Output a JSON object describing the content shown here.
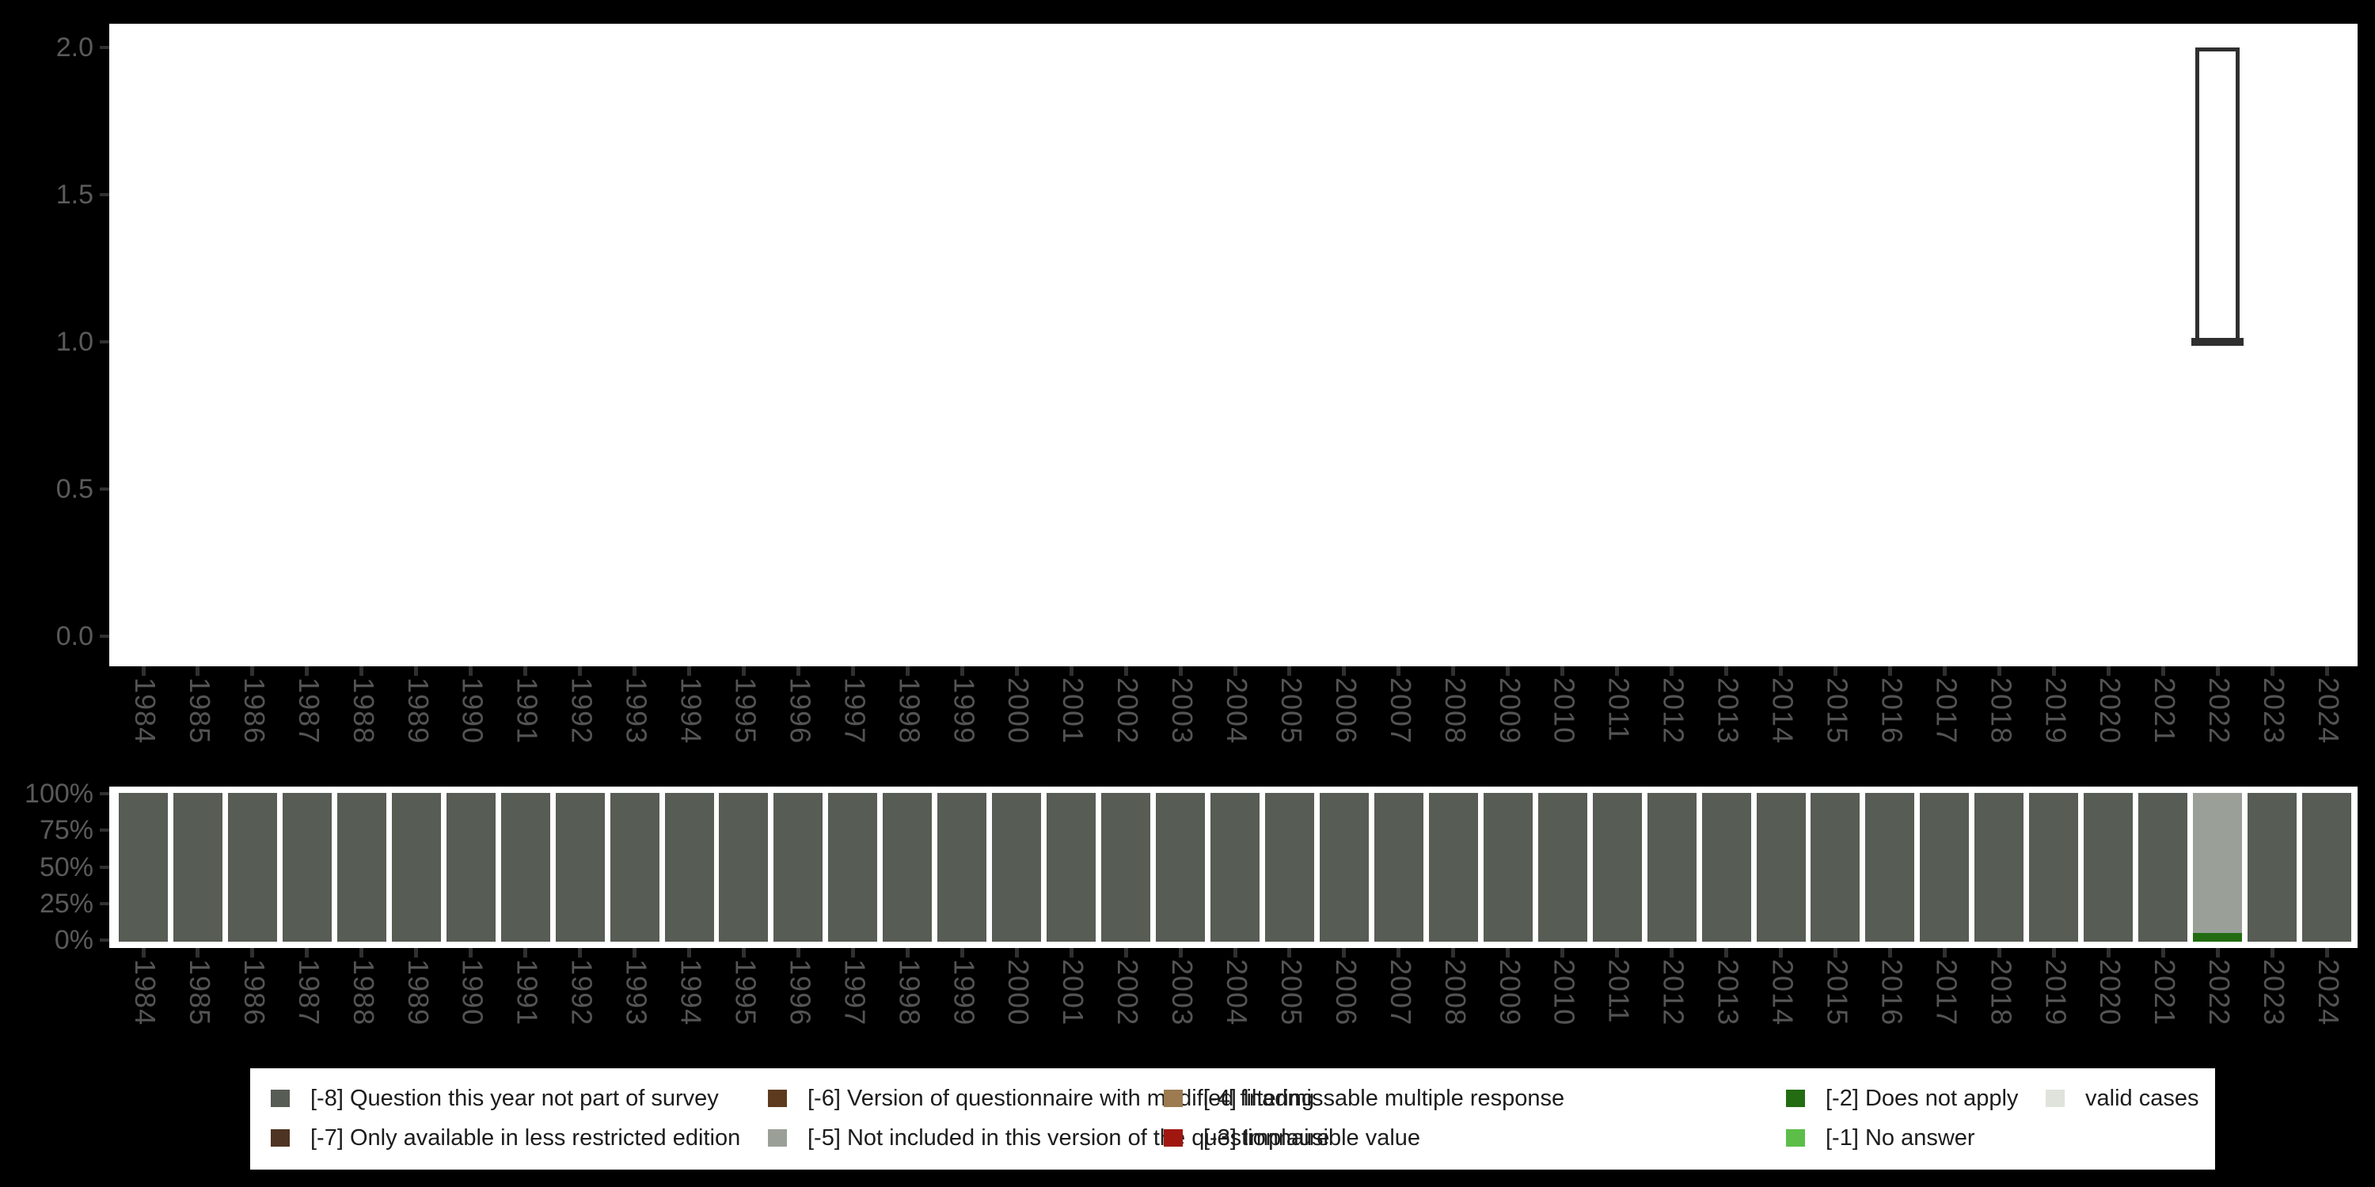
{
  "colors": {
    "background": "#000000",
    "panel": "#ffffff",
    "axis_text": "#5a5a5a",
    "tick_mark": "#303030",
    "box_border": "#2f2f2f",
    "legend_text": "#1c1c1c",
    "legend_background": "#ffffff"
  },
  "legend": {
    "items": [
      {
        "label": "[-8] Question this year not part of survey",
        "color": "#575c54",
        "row": 1,
        "col": 1
      },
      {
        "label": "[-7] Only available in less restricted edition",
        "color": "#4e3422",
        "row": 2,
        "col": 1
      },
      {
        "label": "[-6] Version of questionnaire with modified filtering",
        "color": "#5d3a1e",
        "row": 1,
        "col": 2
      },
      {
        "label": "[-5] Not included in this version of the questionnaire",
        "color": "#9aa098",
        "row": 2,
        "col": 2
      },
      {
        "label": "[-4] Inadmissable multiple response",
        "color": "#9c7b51",
        "row": 1,
        "col": 3
      },
      {
        "label": "[-3] Implausible value",
        "color": "#a01710",
        "row": 2,
        "col": 3
      },
      {
        "label": "[-2] Does not apply",
        "color": "#236c11",
        "row": 1,
        "col": 4
      },
      {
        "label": "[-1] No answer",
        "color": "#5cbe49",
        "row": 2,
        "col": 4
      },
      {
        "label": "valid cases",
        "color": "#dfe3db",
        "row": 1,
        "col": 5
      }
    ]
  },
  "chart_data": [
    {
      "type": "boxplot",
      "title": "",
      "xlabel": "",
      "ylabel": "",
      "x_categories": [
        "1984",
        "1985",
        "1986",
        "1987",
        "1988",
        "1989",
        "1990",
        "1991",
        "1992",
        "1993",
        "1994",
        "1995",
        "1996",
        "1997",
        "1998",
        "1999",
        "2000",
        "2001",
        "2002",
        "2003",
        "2004",
        "2005",
        "2006",
        "2007",
        "2008",
        "2009",
        "2010",
        "2011",
        "2012",
        "2013",
        "2014",
        "2015",
        "2016",
        "2017",
        "2018",
        "2019",
        "2020",
        "2021",
        "2022",
        "2023",
        "2024"
      ],
      "ylim": [
        0.0,
        2.0
      ],
      "ytick_labels": [
        "0.0",
        "0.5",
        "1.0",
        "1.5",
        "2.0"
      ],
      "ytick_values": [
        0.0,
        0.5,
        1.0,
        1.5,
        2.0
      ],
      "grid": false,
      "boxes": [
        {
          "year": "2022",
          "whisker_low": 1.0,
          "q1": 1.0,
          "median": 1.0,
          "q3": 2.0,
          "whisker_high": 2.0
        }
      ]
    },
    {
      "type": "bar",
      "subtype": "stacked-percent",
      "title": "",
      "xlabel": "",
      "ylabel": "",
      "categories": [
        "1984",
        "1985",
        "1986",
        "1987",
        "1988",
        "1989",
        "1990",
        "1991",
        "1992",
        "1993",
        "1994",
        "1995",
        "1996",
        "1997",
        "1998",
        "1999",
        "2000",
        "2001",
        "2002",
        "2003",
        "2004",
        "2005",
        "2006",
        "2007",
        "2008",
        "2009",
        "2010",
        "2011",
        "2012",
        "2013",
        "2014",
        "2015",
        "2016",
        "2017",
        "2018",
        "2019",
        "2020",
        "2021",
        "2022",
        "2023",
        "2024"
      ],
      "ytick_labels": [
        "0%",
        "25%",
        "50%",
        "75%",
        "100%"
      ],
      "ytick_values": [
        0,
        25,
        50,
        75,
        100
      ],
      "ylim": [
        0,
        100
      ],
      "grid": false,
      "stack_order": "bottom-to-top",
      "series": [
        {
          "name": "[-8] Question this year not part of survey",
          "values": [
            100,
            100,
            100,
            100,
            100,
            100,
            100,
            100,
            100,
            100,
            100,
            100,
            100,
            100,
            100,
            100,
            100,
            100,
            100,
            100,
            100,
            100,
            100,
            100,
            100,
            100,
            100,
            100,
            100,
            100,
            100,
            100,
            100,
            100,
            100,
            100,
            100,
            100,
            0,
            100,
            100
          ]
        },
        {
          "name": "[-2] Does not apply",
          "values": [
            0,
            0,
            0,
            0,
            0,
            0,
            0,
            0,
            0,
            0,
            0,
            0,
            0,
            0,
            0,
            0,
            0,
            0,
            0,
            0,
            0,
            0,
            0,
            0,
            0,
            0,
            0,
            0,
            0,
            0,
            0,
            0,
            0,
            0,
            0,
            0,
            0,
            0,
            6,
            0,
            0
          ]
        },
        {
          "name": "[-5] Not included in this version of the questionnaire",
          "values": [
            0,
            0,
            0,
            0,
            0,
            0,
            0,
            0,
            0,
            0,
            0,
            0,
            0,
            0,
            0,
            0,
            0,
            0,
            0,
            0,
            0,
            0,
            0,
            0,
            0,
            0,
            0,
            0,
            0,
            0,
            0,
            0,
            0,
            0,
            0,
            0,
            0,
            0,
            94,
            0,
            0
          ]
        }
      ]
    }
  ]
}
